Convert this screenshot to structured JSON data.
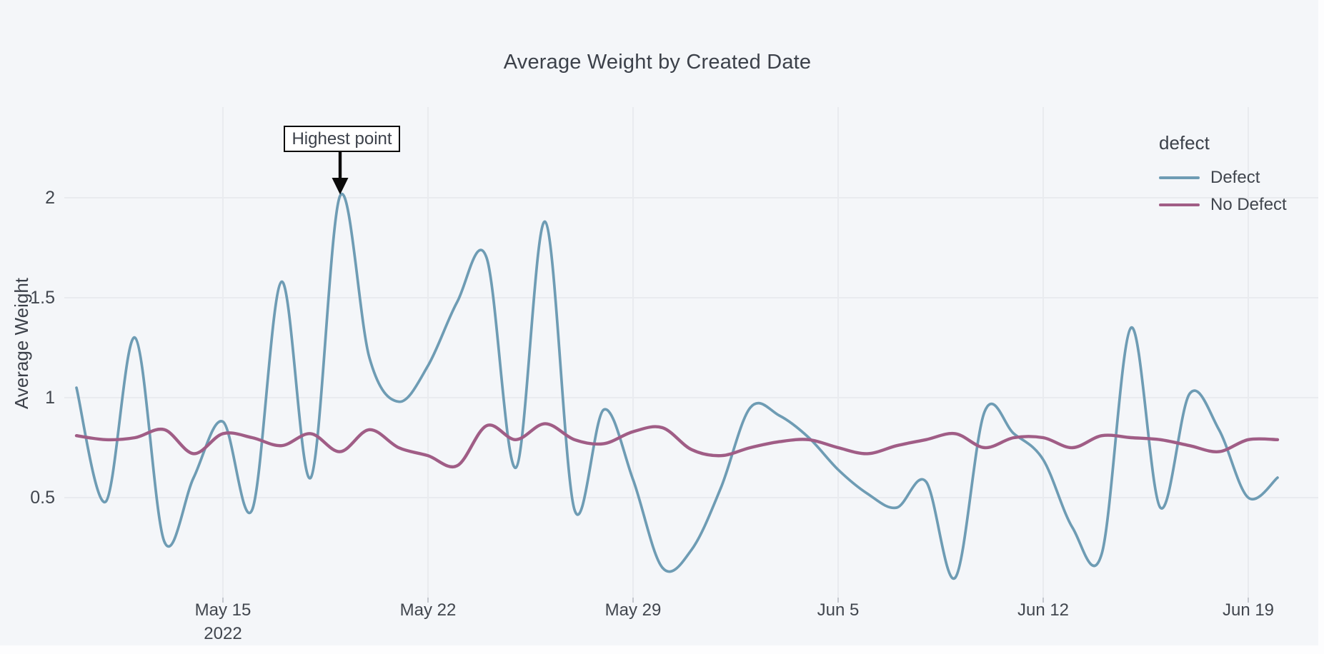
{
  "page": {
    "background": "#f4f6f9"
  },
  "chart": {
    "title": "Average Weight by Created Date",
    "y_axis": {
      "title": "Average Weight",
      "ticks": [
        {
          "label": "0.5",
          "value": 0.5
        },
        {
          "label": "1",
          "value": 1
        },
        {
          "label": "1.5",
          "value": 1.5
        },
        {
          "label": "2",
          "value": 2
        }
      ]
    },
    "x_axis": {
      "ticks": [
        {
          "label": "May 15",
          "sub": "2022",
          "day": 5
        },
        {
          "label": "May 22",
          "day": 12
        },
        {
          "label": "May 29",
          "day": 19
        },
        {
          "label": "Jun 5",
          "day": 26
        },
        {
          "label": "Jun 12",
          "day": 33
        },
        {
          "label": "Jun 19",
          "day": 40
        }
      ]
    },
    "legend": {
      "title": "defect",
      "entries": [
        {
          "label": "Defect",
          "color": "#6e9cb4"
        },
        {
          "label": "No Defect",
          "color": "#a05d86"
        }
      ]
    },
    "annotation": {
      "text": "Highest point",
      "day": 9,
      "value": 2.01
    }
  },
  "chart_data": {
    "type": "line",
    "title": "Average Weight by Created Date",
    "ylabel": "Average Weight",
    "xlabel": "",
    "x_start_date": "2022-05-10",
    "x_step": "1 day",
    "x_tick_labels": [
      "May 15",
      "May 22",
      "May 29",
      "Jun 5",
      "Jun 12",
      "Jun 19"
    ],
    "y_ticks": [
      0.5,
      1,
      1.5,
      2
    ],
    "ylim": [
      0,
      2.45
    ],
    "grid": true,
    "legend_position": "top-right",
    "annotation": {
      "text": "Highest point",
      "series": "Defect",
      "date": "2022-05-19",
      "value": 2.01
    },
    "series": [
      {
        "name": "Defect",
        "color": "#6e9cb4",
        "values": [
          1.05,
          0.48,
          1.3,
          0.28,
          0.6,
          0.88,
          0.44,
          1.58,
          0.6,
          2.01,
          1.2,
          0.98,
          1.16,
          1.48,
          1.7,
          0.65,
          1.88,
          0.44,
          0.94,
          0.59,
          0.15,
          0.24,
          0.55,
          0.95,
          0.91,
          0.8,
          0.64,
          0.52,
          0.45,
          0.58,
          0.1,
          0.93,
          0.82,
          0.69,
          0.35,
          0.22,
          1.35,
          0.45,
          1.02,
          0.84,
          0.5,
          0.6
        ]
      },
      {
        "name": "No Defect",
        "color": "#a05d86",
        "values": [
          0.81,
          0.79,
          0.8,
          0.84,
          0.72,
          0.82,
          0.8,
          0.76,
          0.82,
          0.73,
          0.84,
          0.75,
          0.71,
          0.66,
          0.86,
          0.79,
          0.87,
          0.79,
          0.77,
          0.83,
          0.85,
          0.74,
          0.71,
          0.75,
          0.78,
          0.79,
          0.75,
          0.72,
          0.76,
          0.79,
          0.82,
          0.75,
          0.8,
          0.8,
          0.75,
          0.81,
          0.8,
          0.79,
          0.76,
          0.73,
          0.79,
          0.79
        ]
      }
    ]
  }
}
